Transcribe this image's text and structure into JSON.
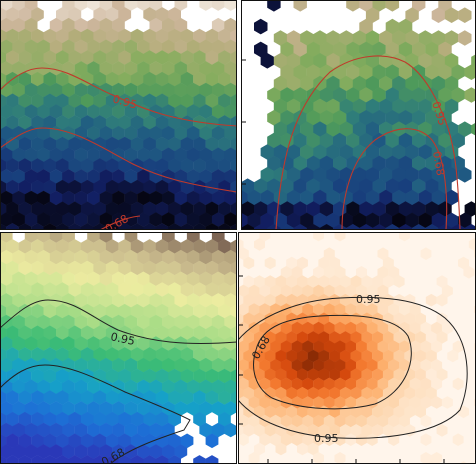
{
  "chart_data": [
    {
      "type": "heatmap",
      "panel": "top-left",
      "style": "hexbin",
      "colormap": "gist_earth",
      "contour_color": "#c0392b",
      "contours": [
        {
          "level": "0.95",
          "label": "0.95"
        },
        {
          "level": "0.68",
          "label": "0.68"
        }
      ],
      "gridlines": false
    },
    {
      "type": "heatmap",
      "panel": "top-right",
      "style": "hexbin",
      "colormap": "gist_earth",
      "contour_color": "#c0392b",
      "contours": [
        {
          "level": "0.95",
          "label": "0.95"
        },
        {
          "level": "0.68",
          "label": "0.68"
        }
      ],
      "gridlines": false
    },
    {
      "type": "heatmap",
      "panel": "bottom-left",
      "style": "hexbin",
      "colormap": "terrain",
      "contour_color": "#222222",
      "contours": [
        {
          "level": "0.95",
          "label": "0.95"
        },
        {
          "level": "0.68",
          "label": "0.68"
        }
      ],
      "gridlines": false
    },
    {
      "type": "heatmap",
      "panel": "bottom-right",
      "style": "hexbin",
      "colormap": "Oranges",
      "contour_color": "#222222",
      "contours": [
        {
          "level": "0.95",
          "label": "0.95"
        },
        {
          "level": "0.68",
          "label": "0.68"
        }
      ],
      "gridlines": false
    }
  ]
}
